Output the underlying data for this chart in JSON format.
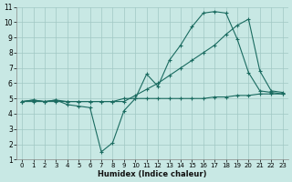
{
  "xlabel": "Humidex (Indice chaleur)",
  "xlim": [
    -0.5,
    23.5
  ],
  "ylim": [
    1,
    11
  ],
  "xticks": [
    0,
    1,
    2,
    3,
    4,
    5,
    6,
    7,
    8,
    9,
    10,
    11,
    12,
    13,
    14,
    15,
    16,
    17,
    18,
    19,
    20,
    21,
    22,
    23
  ],
  "yticks": [
    1,
    2,
    3,
    4,
    5,
    6,
    7,
    8,
    9,
    10,
    11
  ],
  "bg_color": "#c8e8e4",
  "grid_color": "#a0c8c4",
  "line_color": "#1a6b60",
  "line1_x": [
    0,
    1,
    2,
    3,
    4,
    5,
    6,
    7,
    8,
    9,
    10,
    11,
    12,
    13,
    14,
    15,
    16,
    17,
    18,
    19,
    20,
    21,
    22,
    23
  ],
  "line1_y": [
    4.8,
    4.9,
    4.8,
    4.9,
    4.6,
    4.5,
    4.4,
    1.5,
    2.1,
    4.2,
    5.0,
    6.6,
    5.8,
    7.5,
    8.5,
    9.7,
    10.6,
    10.7,
    10.6,
    8.9,
    6.7,
    5.5,
    5.4,
    5.3
  ],
  "line2_x": [
    0,
    1,
    2,
    3,
    4,
    5,
    6,
    7,
    8,
    9,
    10,
    11,
    12,
    13,
    14,
    15,
    16,
    17,
    18,
    19,
    20,
    21,
    22,
    23
  ],
  "line2_y": [
    4.8,
    4.8,
    4.8,
    4.8,
    4.8,
    4.8,
    4.8,
    4.8,
    4.8,
    4.8,
    5.2,
    5.6,
    6.0,
    6.5,
    7.0,
    7.5,
    8.0,
    8.5,
    9.2,
    9.8,
    10.2,
    6.8,
    5.5,
    5.4
  ],
  "line3_x": [
    0,
    1,
    2,
    3,
    4,
    5,
    6,
    7,
    8,
    9,
    10,
    11,
    12,
    13,
    14,
    15,
    16,
    17,
    18,
    19,
    20,
    21,
    22,
    23
  ],
  "line3_y": [
    4.8,
    4.9,
    4.8,
    4.9,
    4.8,
    4.8,
    4.8,
    4.8,
    4.8,
    5.0,
    5.0,
    5.0,
    5.0,
    5.0,
    5.0,
    5.0,
    5.0,
    5.1,
    5.1,
    5.2,
    5.2,
    5.3,
    5.3,
    5.3
  ]
}
